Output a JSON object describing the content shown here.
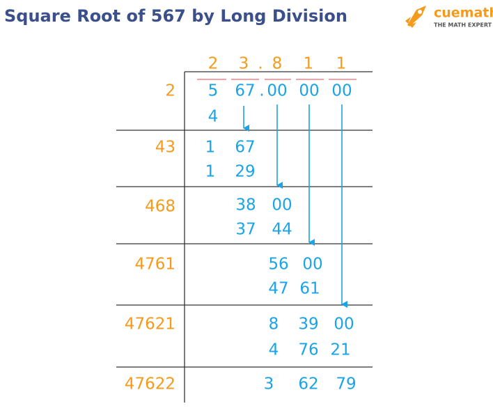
{
  "title": "Square Root of 567 by Long Division",
  "logo": {
    "name": "cuemath",
    "tagline": "THE MATH EXPERT"
  },
  "quotient": [
    "2",
    "3",
    ".",
    "8",
    "1",
    "1"
  ],
  "steps": [
    {
      "divisor": "2",
      "lines": [
        [
          "5",
          "67",
          ".",
          "00",
          "00",
          "00"
        ],
        [
          "4"
        ]
      ]
    },
    {
      "divisor": "43",
      "lines": [
        [
          "1",
          "67"
        ],
        [
          "1",
          "29"
        ]
      ]
    },
    {
      "divisor": "468",
      "lines": [
        [
          "38",
          "00"
        ],
        [
          "37",
          "44"
        ]
      ]
    },
    {
      "divisor": "4761",
      "lines": [
        [
          "56",
          "00"
        ],
        [
          "47",
          "61"
        ]
      ]
    },
    {
      "divisor": "47621",
      "lines": [
        [
          "8",
          "39",
          "00"
        ],
        [
          "4",
          "76",
          "21"
        ]
      ]
    },
    {
      "divisor": "47622",
      "lines": [
        [
          "3",
          "62",
          "79"
        ]
      ]
    }
  ]
}
